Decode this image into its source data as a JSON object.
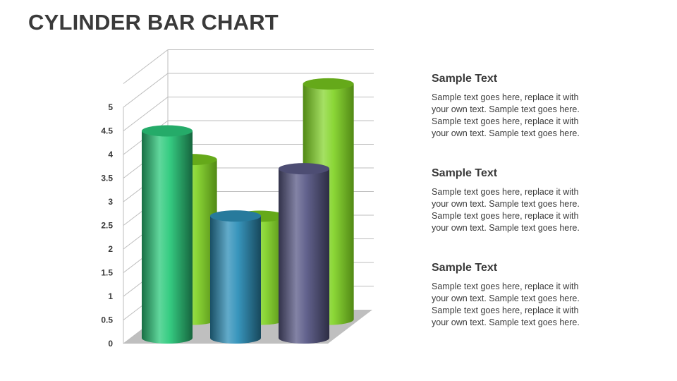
{
  "title": "CYLINDER BAR CHART",
  "chart_data": {
    "type": "bar",
    "title": "",
    "xlabel": "",
    "ylabel": "",
    "ylim": [
      0,
      5
    ],
    "yticks": [
      "0",
      "0.5",
      "1",
      "1.5",
      "2",
      "2.5",
      "3",
      "3.5",
      "4",
      "4.5",
      "5"
    ],
    "grid": true,
    "rows": [
      {
        "depth": "back",
        "values": [
          3.5,
          2.3,
          5.1
        ],
        "colors": [
          "#7ed321",
          "#7ed321",
          "#7ed321"
        ]
      },
      {
        "depth": "front",
        "values": [
          4.5,
          2.7,
          3.7
        ],
        "colors": [
          "#2bc97b",
          "#2e8fb8",
          "#5a5a87"
        ]
      }
    ]
  },
  "panels": [
    {
      "heading": "Sample Text",
      "lines": [
        "Sample text goes here, replace it with",
        "your own text. Sample text goes here.",
        "Sample text goes here, replace it with",
        "your own text. Sample text goes here."
      ]
    },
    {
      "heading": "Sample Text",
      "lines": [
        "Sample text goes here, replace it with",
        "your own text. Sample text goes here.",
        "Sample text goes here, replace it with",
        "your own text. Sample text goes here."
      ]
    },
    {
      "heading": "Sample Text",
      "lines": [
        "Sample text goes here, replace it with",
        "your own text. Sample text goes here.",
        "Sample text goes here, replace it with",
        "your own text. Sample text goes here."
      ]
    }
  ]
}
